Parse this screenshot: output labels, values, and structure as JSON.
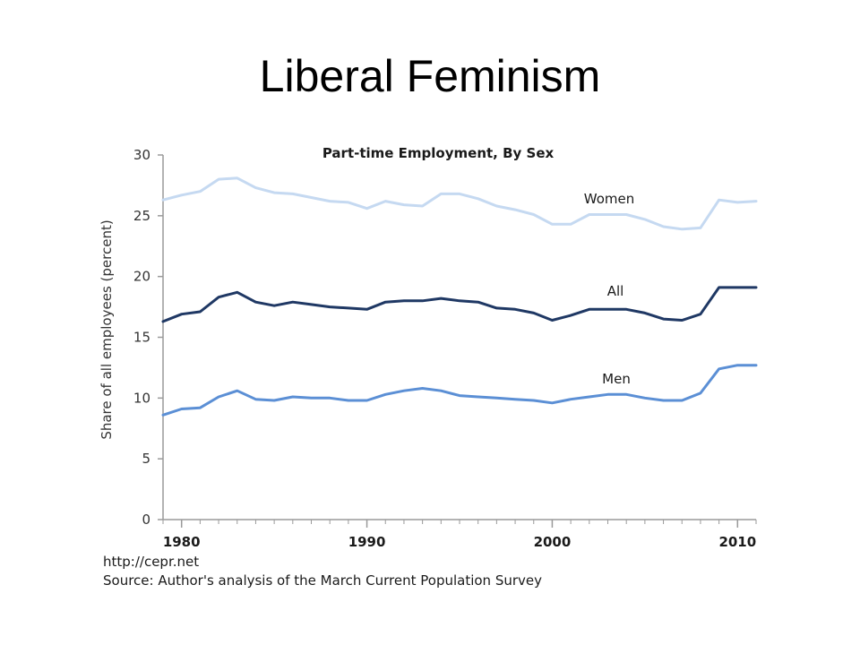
{
  "slide": {
    "title": "Liberal Feminism"
  },
  "footer": {
    "url": "http://cepr.net",
    "source": "Source: Author's analysis of the March Current Population Survey"
  },
  "chart_data": {
    "type": "line",
    "title": "Part-time Employment, By Sex",
    "xlabel": "",
    "ylabel": "Share of all employees (percent)",
    "xlim": [
      1979,
      2011
    ],
    "ylim": [
      0,
      30
    ],
    "yticks": [
      0,
      5,
      10,
      15,
      20,
      25,
      30
    ],
    "xticks": [
      1980,
      1990,
      2000,
      2010
    ],
    "grid": false,
    "x": [
      1979,
      1980,
      1981,
      1982,
      1983,
      1984,
      1985,
      1986,
      1987,
      1988,
      1989,
      1990,
      1991,
      1992,
      1993,
      1994,
      1995,
      1996,
      1997,
      1998,
      1999,
      2000,
      2001,
      2002,
      2003,
      2004,
      2005,
      2006,
      2007,
      2008,
      2009,
      2010,
      2011
    ],
    "series": [
      {
        "name": "Women",
        "color": "#c5d9f1",
        "values": [
          26.3,
          26.7,
          27.0,
          28.0,
          28.1,
          27.3,
          26.9,
          26.8,
          26.5,
          26.2,
          26.1,
          25.6,
          26.2,
          25.9,
          25.8,
          26.8,
          26.8,
          26.4,
          25.8,
          25.5,
          25.1,
          24.3,
          24.3,
          25.1,
          25.1,
          25.1,
          24.7,
          24.1,
          23.9,
          24.0,
          26.3,
          26.1,
          26.2
        ]
      },
      {
        "name": "All",
        "color": "#1f3864",
        "values": [
          16.3,
          16.9,
          17.1,
          18.3,
          18.7,
          17.9,
          17.6,
          17.9,
          17.7,
          17.5,
          17.4,
          17.3,
          17.9,
          18.0,
          18.0,
          18.2,
          18.0,
          17.9,
          17.4,
          17.3,
          17.0,
          16.4,
          16.8,
          17.3,
          17.3,
          17.3,
          17.0,
          16.5,
          16.4,
          16.9,
          19.1,
          19.1,
          19.1
        ]
      },
      {
        "name": "Men",
        "color": "#5b8fd5",
        "values": [
          8.6,
          9.1,
          9.2,
          10.1,
          10.6,
          9.9,
          9.8,
          10.1,
          10.0,
          10.0,
          9.8,
          9.8,
          10.3,
          10.6,
          10.8,
          10.6,
          10.2,
          10.1,
          10.0,
          9.9,
          9.8,
          9.6,
          9.9,
          10.1,
          10.3,
          10.3,
          10.0,
          9.8,
          9.8,
          10.4,
          12.4,
          12.7,
          12.7
        ]
      }
    ]
  }
}
